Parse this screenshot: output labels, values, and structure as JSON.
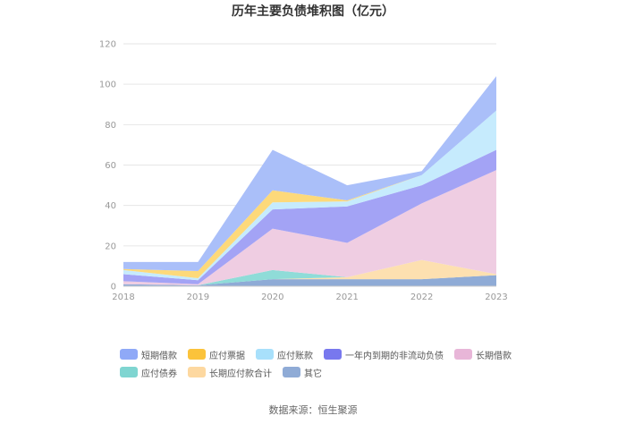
{
  "title": "历年主要负债堆积图（亿元）",
  "source": "数据来源：恒生聚源",
  "chart_data": {
    "type": "area",
    "stacked": true,
    "title": "历年主要负债堆积图（亿元）",
    "categories": [
      "2018",
      "2019",
      "2020",
      "2021",
      "2022",
      "2023"
    ],
    "y_ticks": [
      "0",
      "20",
      "40",
      "60",
      "80",
      "100",
      "120"
    ],
    "ylim": [
      0,
      120
    ],
    "grid": true,
    "legend_position": "bottom",
    "series": [
      {
        "name": "其它",
        "color": "#8fabd6",
        "values": [
          1.0,
          0.5,
          3.5,
          3.5,
          3.5,
          5.5
        ]
      },
      {
        "name": "长期应付款合计",
        "color": "#fde0b0",
        "values": [
          0.0,
          0.0,
          0.0,
          1.0,
          9.5,
          0.5
        ]
      },
      {
        "name": "应付债券",
        "color": "#8fdcd8",
        "values": [
          0.0,
          0.0,
          4.5,
          0.0,
          0.0,
          0.0
        ]
      },
      {
        "name": "长期借款",
        "color": "#efcde2",
        "values": [
          1.5,
          0.5,
          20.5,
          17.0,
          28.0,
          51.5
        ]
      },
      {
        "name": "一年内到期的非流动负债",
        "color": "#a3a3f5",
        "values": [
          3.5,
          2.0,
          9.5,
          18.0,
          9.0,
          10.0
        ]
      },
      {
        "name": "应付账款",
        "color": "#c6ebfd",
        "values": [
          2.0,
          1.0,
          3.5,
          2.5,
          5.0,
          19.5
        ]
      },
      {
        "name": "应付票据",
        "color": "#fdd97a",
        "values": [
          0.5,
          3.5,
          6.0,
          0.5,
          0.0,
          0.0
        ]
      },
      {
        "name": "短期借款",
        "color": "#aabff9",
        "values": [
          3.5,
          4.5,
          20.0,
          7.5,
          2.0,
          17.0
        ]
      }
    ]
  },
  "legend": {
    "items": [
      {
        "label": "短期借款",
        "color": "#8fa9f7"
      },
      {
        "label": "应付票据",
        "color": "#fbc33b"
      },
      {
        "label": "应付账款",
        "color": "#a8e0fb"
      },
      {
        "label": "一年内到期的非流动负债",
        "color": "#7878ee"
      },
      {
        "label": "长期借款",
        "color": "#e8b6d8"
      },
      {
        "label": "应付债券",
        "color": "#7fd5d1"
      },
      {
        "label": "长期应付款合计",
        "color": "#fdd8a0"
      },
      {
        "label": "其它",
        "color": "#8fabd6"
      }
    ]
  }
}
